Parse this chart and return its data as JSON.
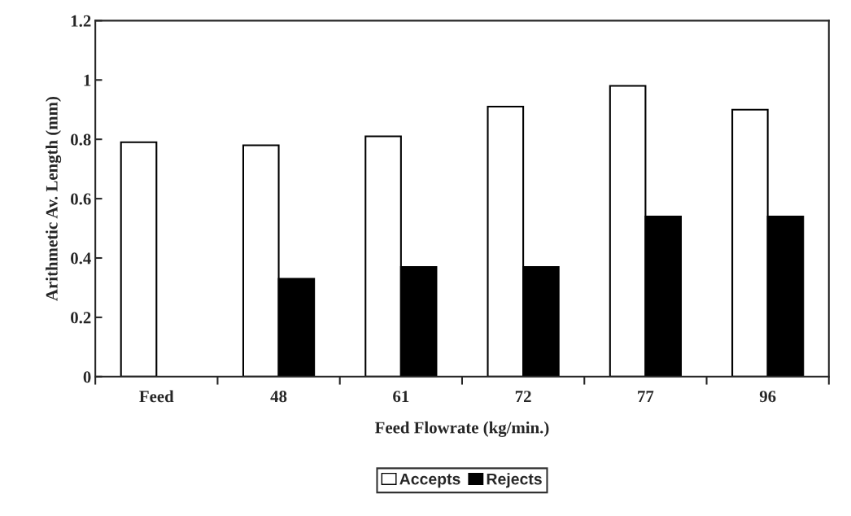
{
  "chart_data": {
    "type": "bar",
    "xlabel": "Feed Flowrate (kg/min.)",
    "ylabel": "Arithmetic Av. Length (mm)",
    "categories": [
      "Feed",
      "48",
      "61",
      "72",
      "77",
      "96"
    ],
    "series": [
      {
        "name": "Accepts",
        "color": "#ffffff",
        "values": [
          0.79,
          0.78,
          0.81,
          0.91,
          0.98,
          0.9
        ]
      },
      {
        "name": "Rejects",
        "color": "#000000",
        "values": [
          null,
          0.33,
          0.37,
          0.37,
          0.54,
          0.54
        ]
      }
    ],
    "ylim": [
      0,
      1.2
    ],
    "yticks": [
      0,
      0.2,
      0.4,
      0.6,
      0.8,
      1,
      1.2
    ],
    "grid": false,
    "legend": "bottom"
  }
}
